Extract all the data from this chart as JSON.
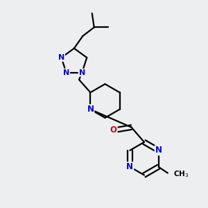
{
  "bg_color": "#eceef0",
  "bond_color": "#000000",
  "nitrogen_color": "#0000cc",
  "oxygen_color": "#cc0000",
  "line_width": 1.6,
  "font_size_atom": 8.5,
  "figsize": [
    3.0,
    3.0
  ],
  "dpi": 100,
  "xlim": [
    0,
    10
  ],
  "ylim": [
    0,
    10
  ]
}
